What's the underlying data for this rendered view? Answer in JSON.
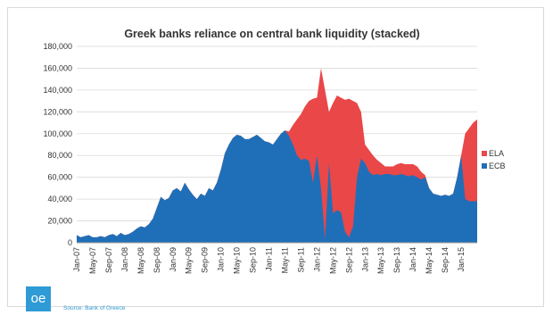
{
  "logo_text": "oe",
  "source_text": "Source: Bank of Greece",
  "chart_data": {
    "type": "area",
    "stacked": true,
    "title": "Greek banks reliance on central bank liquidity (stacked)",
    "xlabel": "",
    "ylabel": "",
    "ylim": [
      0,
      180000
    ],
    "yticks": [
      0,
      20000,
      40000,
      60000,
      80000,
      100000,
      120000,
      140000,
      160000,
      180000
    ],
    "grid": "horizontal",
    "legend_position": "right",
    "x_tick_labels": [
      "Jan-07",
      "May-07",
      "Sep-07",
      "Jan-08",
      "May-08",
      "Sep-08",
      "Jan-09",
      "May-09",
      "Sep-09",
      "Jan-10",
      "May-10",
      "Sep-10",
      "Jan-11",
      "May-11",
      "Sep-11",
      "Jan-12",
      "May-12",
      "Sep-12",
      "Jan-13",
      "May-13",
      "Sep-13",
      "Jan-14",
      "May-14",
      "Sep-14",
      "Jan-15"
    ],
    "x_months": [
      "Jan-07",
      "Feb-07",
      "Mar-07",
      "Apr-07",
      "May-07",
      "Jun-07",
      "Jul-07",
      "Aug-07",
      "Sep-07",
      "Oct-07",
      "Nov-07",
      "Dec-07",
      "Jan-08",
      "Feb-08",
      "Mar-08",
      "Apr-08",
      "May-08",
      "Jun-08",
      "Jul-08",
      "Aug-08",
      "Sep-08",
      "Oct-08",
      "Nov-08",
      "Dec-08",
      "Jan-09",
      "Feb-09",
      "Mar-09",
      "Apr-09",
      "May-09",
      "Jun-09",
      "Jul-09",
      "Aug-09",
      "Sep-09",
      "Oct-09",
      "Nov-09",
      "Dec-09",
      "Jan-10",
      "Feb-10",
      "Mar-10",
      "Apr-10",
      "May-10",
      "Jun-10",
      "Jul-10",
      "Aug-10",
      "Sep-10",
      "Oct-10",
      "Nov-10",
      "Dec-10",
      "Jan-11",
      "Feb-11",
      "Mar-11",
      "Apr-11",
      "May-11",
      "Jun-11",
      "Jul-11",
      "Aug-11",
      "Sep-11",
      "Oct-11",
      "Nov-11",
      "Dec-11",
      "Jan-12",
      "Feb-12",
      "Mar-12",
      "Apr-12",
      "May-12",
      "Jun-12",
      "Jul-12",
      "Aug-12",
      "Sep-12",
      "Oct-12",
      "Nov-12",
      "Dec-12",
      "Jan-13",
      "Feb-13",
      "Mar-13",
      "Apr-13",
      "May-13",
      "Jun-13",
      "Jul-13",
      "Aug-13",
      "Sep-13",
      "Oct-13",
      "Nov-13",
      "Dec-13",
      "Jan-14",
      "Feb-14",
      "Mar-14",
      "Apr-14",
      "May-14",
      "Jun-14",
      "Jul-14",
      "Aug-14",
      "Sep-14",
      "Oct-14",
      "Nov-14",
      "Dec-14",
      "Jan-15",
      "Feb-15",
      "Mar-15",
      "Apr-15",
      "May-15"
    ],
    "series": [
      {
        "name": "ECB",
        "color": "#1f6fb8",
        "values": [
          7000,
          5000,
          6000,
          7000,
          5000,
          5000,
          6000,
          5000,
          7000,
          8000,
          6000,
          9000,
          7000,
          8000,
          10000,
          13000,
          15000,
          14000,
          17000,
          22000,
          32000,
          42000,
          39000,
          41000,
          48000,
          50000,
          47000,
          55000,
          49000,
          44000,
          40000,
          45000,
          43000,
          50000,
          48000,
          55000,
          67000,
          82000,
          90000,
          96000,
          99000,
          98000,
          95000,
          95000,
          97000,
          99000,
          96000,
          93000,
          92000,
          90000,
          95000,
          100000,
          103000,
          98000,
          90000,
          80000,
          76000,
          77000,
          75000,
          55000,
          80000,
          50000,
          3000,
          73000,
          27000,
          30000,
          28000,
          10000,
          5000,
          15000,
          60000,
          77000,
          73000,
          65000,
          62000,
          63000,
          62000,
          63000,
          63000,
          62000,
          62000,
          63000,
          62000,
          61000,
          62000,
          60000,
          58000,
          60000,
          50000,
          45000,
          44000,
          43000,
          44000,
          43000,
          45000,
          60000,
          80000,
          40000,
          38000,
          38000,
          38000
        ],
        "total": [
          7000,
          5000,
          6000,
          7000,
          5000,
          5000,
          6000,
          5000,
          7000,
          8000,
          6000,
          9000,
          7000,
          8000,
          10000,
          13000,
          15000,
          14000,
          17000,
          22000,
          32000,
          42000,
          39000,
          41000,
          48000,
          50000,
          47000,
          55000,
          49000,
          44000,
          40000,
          45000,
          43000,
          50000,
          48000,
          55000,
          67000,
          82000,
          90000,
          96000,
          99000,
          98000,
          95000,
          95000,
          97000,
          99000,
          96000,
          93000,
          92000,
          90000,
          95000,
          100000,
          103000,
          102000,
          108000,
          113000,
          118000,
          125000,
          130000,
          132000,
          133000,
          160000,
          140000,
          120000,
          128000,
          135000,
          133000,
          131000,
          132000,
          130000,
          128000,
          120000,
          90000,
          85000,
          80000,
          76000,
          73000,
          70000,
          70000,
          70000,
          72000,
          73000,
          72000,
          72000,
          72000,
          70000,
          65000,
          62000,
          50000,
          45000,
          44000,
          43000,
          44000,
          43000,
          45000,
          60000,
          80000,
          100000,
          105000,
          110000,
          113000
        ]
      },
      {
        "name": "ELA",
        "color": "#ea4748",
        "values": [
          0,
          0,
          0,
          0,
          0,
          0,
          0,
          0,
          0,
          0,
          0,
          0,
          0,
          0,
          0,
          0,
          0,
          0,
          0,
          0,
          0,
          0,
          0,
          0,
          0,
          0,
          0,
          0,
          0,
          0,
          0,
          0,
          0,
          0,
          0,
          0,
          0,
          0,
          0,
          0,
          0,
          0,
          0,
          0,
          0,
          0,
          0,
          0,
          0,
          0,
          0,
          0,
          0,
          4000,
          18000,
          33000,
          42000,
          48000,
          55000,
          77000,
          53000,
          110000,
          137000,
          47000,
          101000,
          105000,
          105000,
          121000,
          127000,
          115000,
          68000,
          43000,
          17000,
          20000,
          18000,
          13000,
          11000,
          7000,
          7000,
          8000,
          10000,
          10000,
          10000,
          11000,
          10000,
          10000,
          7000,
          2000,
          0,
          0,
          0,
          0,
          0,
          0,
          0,
          0,
          0,
          60000,
          67000,
          72000,
          75000
        ]
      }
    ]
  }
}
